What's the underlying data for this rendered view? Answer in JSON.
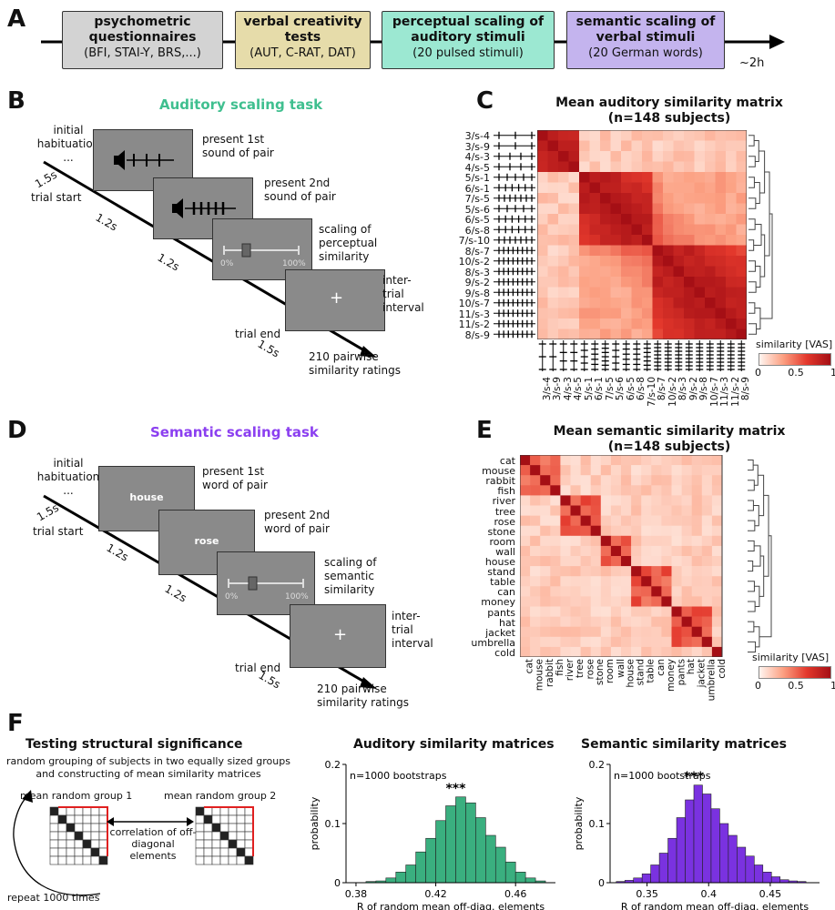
{
  "panelA": {
    "label": "A",
    "stages": [
      {
        "title": "psychometric questionnaires",
        "sub": "(BFI, STAI-Y, BRS,...)",
        "color": "#d3d3d3"
      },
      {
        "title": "verbal creativity tests",
        "sub": "(AUT, C-RAT, DAT)",
        "color": "#e6dcaa"
      },
      {
        "title": "perceptual scaling of auditory stimuli",
        "sub": "(20 pulsed stimuli)",
        "color": "#9ce8d2"
      },
      {
        "title": "semantic scaling of verbal stimuli",
        "sub": "(20 German words)",
        "color": "#c4b4ee"
      }
    ],
    "duration": "~2h"
  },
  "panelB": {
    "label": "B",
    "title": "Auditory scaling task",
    "habituation": "initial habituation",
    "ellipsis": "...",
    "t1": "1.5s",
    "trial_start": "trial start",
    "t2": "1.2s",
    "t3": "1.2s",
    "t4": "1.5s",
    "trial_end": "trial end",
    "step1": "present 1st sound of pair",
    "step2": "present 2nd sound of pair",
    "step3": "scaling of perceptual similarity",
    "step4": "inter-trial interval",
    "vas_min": "0%",
    "vas_max": "100%",
    "fix": "+",
    "ratings": "210 pairwise similarity ratings"
  },
  "panelC": {
    "label": "C",
    "title": "Mean auditory similarity matrix",
    "subtitle": "(n=148 subjects)",
    "labels": [
      "3/s-4",
      "3/s-9",
      "4/s-3",
      "4/s-5",
      "5/s-1",
      "6/s-1",
      "7/s-5",
      "5/s-6",
      "6/s-5",
      "6/s-8",
      "7/s-10",
      "8/s-7",
      "10/s-2",
      "8/s-3",
      "9/s-2",
      "9/s-8",
      "10/s-7",
      "11/s-3",
      "11/s-2",
      "8/s-9"
    ],
    "cbar_label": "similarity [VAS]",
    "cbar_ticks": [
      "0",
      "0.5",
      "1"
    ]
  },
  "panelD": {
    "label": "D",
    "title": "Semantic scaling task",
    "habituation": "initial habituation",
    "ellipsis": "...",
    "t1": "1.5s",
    "trial_start": "trial start",
    "t2": "1.2s",
    "t3": "1.2s",
    "t4": "1.5s",
    "trial_end": "trial end",
    "word1": "house",
    "word2": "rose",
    "step1": "present 1st word of pair",
    "step2": "present 2nd word of pair",
    "step3": "scaling of semantic similarity",
    "step4": "inter-trial interval",
    "vas_min": "0%",
    "vas_max": "100%",
    "fix": "+",
    "ratings": "210 pairwise similarity ratings"
  },
  "panelE": {
    "label": "E",
    "title": "Mean semantic similarity matrix",
    "subtitle": "(n=148 subjects)",
    "labels": [
      "cat",
      "mouse",
      "rabbit",
      "fish",
      "river",
      "tree",
      "rose",
      "stone",
      "room",
      "wall",
      "house",
      "stand",
      "table",
      "can",
      "money",
      "pants",
      "hat",
      "jacket",
      "umbrella",
      "cold"
    ],
    "cbar_label": "similarity [VAS]",
    "cbar_ticks": [
      "0",
      "0.5",
      "1"
    ]
  },
  "panelF": {
    "label": "F",
    "left_title": "Testing structural significance",
    "left_desc": "random grouping of subjects in two equally sized groups and constructing of mean similarity matrices",
    "group1": "mean random group 1",
    "group2": "mean random group 2",
    "corr": "correlation of off-diagonal elements",
    "repeat": "repeat 1000 times"
  },
  "chart_data": [
    {
      "type": "bar",
      "title": "Auditory similarity matrices",
      "annotation": "n=1000 bootstraps",
      "significance": "***",
      "xlabel": "R of random mean off-diag. elements",
      "ylabel": "probability",
      "color": "#3aaf7f",
      "xlim": [
        0.375,
        0.48
      ],
      "ylim": [
        0,
        0.2
      ],
      "xticks": [
        "0.38",
        "0.42",
        "0.46"
      ],
      "yticks": [
        "0",
        "0.1",
        "0.2"
      ],
      "bin_starts": [
        0.385,
        0.39,
        0.395,
        0.4,
        0.405,
        0.41,
        0.415,
        0.42,
        0.425,
        0.43,
        0.435,
        0.44,
        0.445,
        0.45,
        0.455,
        0.46,
        0.465,
        0.47
      ],
      "values": [
        0.002,
        0.003,
        0.008,
        0.018,
        0.03,
        0.052,
        0.075,
        0.105,
        0.13,
        0.145,
        0.135,
        0.11,
        0.08,
        0.06,
        0.035,
        0.018,
        0.008,
        0.003
      ]
    },
    {
      "type": "bar",
      "title": "Semantic similarity matrices",
      "annotation": "n=1000 bootstraps",
      "significance": "***",
      "xlabel": "R of random mean off-diag. elements",
      "ylabel": "probability",
      "color": "#7a32e0",
      "xlim": [
        0.32,
        0.49
      ],
      "ylim": [
        0,
        0.2
      ],
      "xticks": [
        "0.35",
        "0.4",
        "0.45"
      ],
      "yticks": [
        "0",
        "0.1",
        "0.2"
      ],
      "bin_starts": [
        0.325,
        0.332,
        0.339,
        0.346,
        0.353,
        0.36,
        0.367,
        0.374,
        0.381,
        0.388,
        0.395,
        0.402,
        0.409,
        0.416,
        0.423,
        0.43,
        0.437,
        0.444,
        0.451,
        0.458,
        0.465,
        0.472
      ],
      "values": [
        0.002,
        0.004,
        0.008,
        0.015,
        0.03,
        0.05,
        0.075,
        0.11,
        0.14,
        0.165,
        0.15,
        0.125,
        0.1,
        0.08,
        0.06,
        0.045,
        0.03,
        0.018,
        0.01,
        0.005,
        0.003,
        0.002
      ]
    }
  ]
}
